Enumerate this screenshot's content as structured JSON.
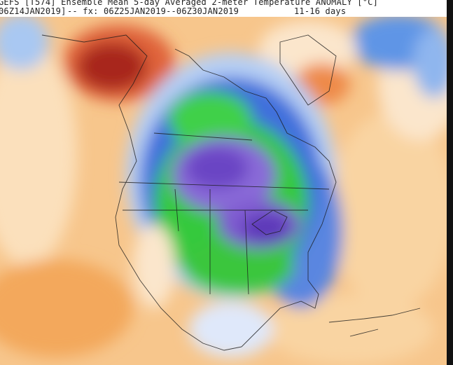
{
  "header": {
    "title": "GEFS [T574] Ensemble Mean 5-day Averaged 2-meter Temperature ANOMALY [°C]",
    "issued": "06Z14JAN2019]",
    "valid": "-- fx: 06Z25JAN2019--06Z30JAN2019",
    "lead": "11-16 days"
  }
}
